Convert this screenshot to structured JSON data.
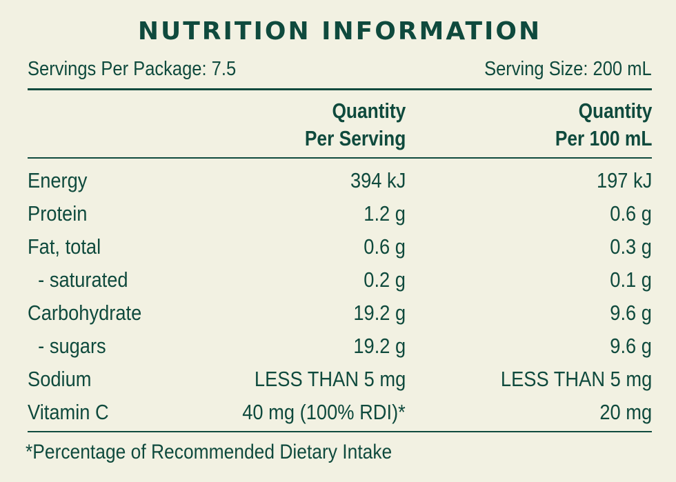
{
  "title": "NUTRITION INFORMATION",
  "servings_per_package": "Servings Per Package: 7.5",
  "serving_size": "Serving Size: 200 mL",
  "columns": {
    "per_serving": [
      "Quantity",
      "Per Serving"
    ],
    "per_100ml": [
      "Quantity",
      "Per 100 mL"
    ]
  },
  "rows": [
    {
      "label": "Energy",
      "per_serving": "394 kJ",
      "per_100ml": "197 kJ"
    },
    {
      "label": "Protein",
      "per_serving": "1.2 g",
      "per_100ml": "0.6 g"
    },
    {
      "label": "Fat, total",
      "per_serving": "0.6 g",
      "per_100ml": "0.3 g"
    },
    {
      "label": "  - saturated",
      "per_serving": "0.2 g",
      "per_100ml": "0.1 g"
    },
    {
      "label": "Carbohydrate",
      "per_serving": "19.2 g",
      "per_100ml": "9.6 g"
    },
    {
      "label": "  - sugars",
      "per_serving": "19.2 g",
      "per_100ml": "9.6 g"
    },
    {
      "label": "Sodium",
      "per_serving": "LESS THAN 5 mg",
      "per_100ml": "LESS THAN 5 mg"
    },
    {
      "label": "Vitamin C",
      "per_serving": "40 mg (100% RDI)*",
      "per_100ml": "20 mg"
    }
  ],
  "footnote": "*Percentage of Recommended Dietary Intake",
  "colors": {
    "background": "#f2f1e2",
    "ink": "#0f4a3d"
  }
}
